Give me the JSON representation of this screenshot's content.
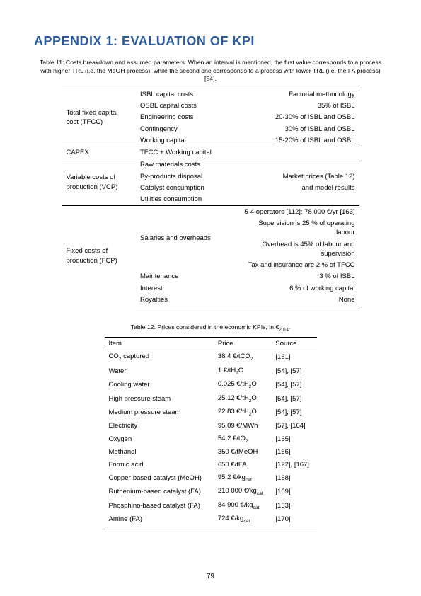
{
  "title": "APPENDIX 1: EVALUATION OF KPI",
  "table11": {
    "caption": "Table 11: Costs breakdown and assumed parameters. When an interval is mentioned, the first value corresponds to a process with higher TRL (i.e. the MeOH process), while the second one corresponds to a process with lower TRL (i.e. the FA process) [54].",
    "groups": [
      {
        "label": "Total fixed capital cost (TFCC)",
        "rows": [
          {
            "mid": "ISBL capital costs",
            "right": "Factorial methodology"
          },
          {
            "mid": "OSBL capital costs",
            "right": "35% of ISBL"
          },
          {
            "mid": "Engineering costs",
            "right": "20-30% of ISBL and OSBL"
          },
          {
            "mid": "Contingency",
            "right": "30% of ISBL and OSBL"
          },
          {
            "mid": "Working capital",
            "right": "15-20% of ISBL and OSBL"
          }
        ]
      },
      {
        "label": "CAPEX",
        "rows": [
          {
            "mid": "TFCC + Working capital",
            "right": ""
          }
        ]
      },
      {
        "label": "Variable costs of production (VCP)",
        "rows": [
          {
            "mid": "Raw materials costs",
            "right": ""
          },
          {
            "mid": "By-products disposal",
            "right": "Market prices (Table 12)"
          },
          {
            "mid": "Catalyst consumption",
            "right": "and model results"
          },
          {
            "mid": "Utilities consumption",
            "right": ""
          }
        ]
      },
      {
        "label": "Fixed costs of production (FCP)",
        "rows": [
          {
            "mid": "Salaries and overheads",
            "right": [
              "5-4 operators [112]; 78 000 €/yr [163]",
              "Supervision is 25 % of operating labour",
              "Overhead is 45% of labour and supervision",
              "Tax and insurance are 2 % of TFCC"
            ],
            "multi": true
          },
          {
            "mid": "Maintenance",
            "right": "3 % of ISBL"
          },
          {
            "mid": "Interest",
            "right": "6 % of working capital"
          },
          {
            "mid": "Royalties",
            "right": "None"
          }
        ]
      }
    ]
  },
  "table12": {
    "caption_prefix": "Table 12: Prices considered in the economic KPIs, in €",
    "caption_sub": "2014",
    "caption_suffix": ".",
    "headers": [
      "Item",
      "Price",
      "Source"
    ],
    "rows": [
      {
        "item_html": "CO<sub>2</sub> captured",
        "price_html": "38.4 €/tCO<sub>2</sub>",
        "source": "[161]"
      },
      {
        "item_html": "Water",
        "price_html": "1 €/tH<sub>2</sub>O",
        "source": "[54], [57]"
      },
      {
        "item_html": "Cooling water",
        "price_html": "0.025 €/tH<sub>2</sub>O",
        "source": "[54], [57]"
      },
      {
        "item_html": "High pressure steam",
        "price_html": "25.12 €/tH<sub>2</sub>O",
        "source": "[54], [57]"
      },
      {
        "item_html": "Medium pressure steam",
        "price_html": "22.83 €/tH<sub>2</sub>O",
        "source": "[54], [57]"
      },
      {
        "item_html": "Electricity",
        "price_html": "95.09 €/MWh",
        "source": "[57], [164]"
      },
      {
        "item_html": "Oxygen",
        "price_html": "54.2 €/tO<sub>2</sub>",
        "source": "[165]"
      },
      {
        "item_html": "Methanol",
        "price_html": "350 €/tMeOH",
        "source": "[166]"
      },
      {
        "item_html": "Formic acid",
        "price_html": "650 €/tFA",
        "source": "[122], [167]"
      },
      {
        "item_html": "Copper-based catalyst (MeOH)",
        "price_html": "95.2 €/kg<sub>cat</sub>",
        "source": "[168]"
      },
      {
        "item_html": "Ruthenium-based catalyst (FA)",
        "price_html": "210 000 €/kg<sub>cat</sub>",
        "source": "[169]"
      },
      {
        "item_html": "Phosphino-based catalyst (FA)",
        "price_html": "84 900 €/kg<sub>cat</sub>",
        "source": "[153]"
      },
      {
        "item_html": "Amine (FA)",
        "price_html": "724 €/kg<sub>cat</sub>",
        "source": "[170]"
      }
    ]
  },
  "page_number": "79"
}
